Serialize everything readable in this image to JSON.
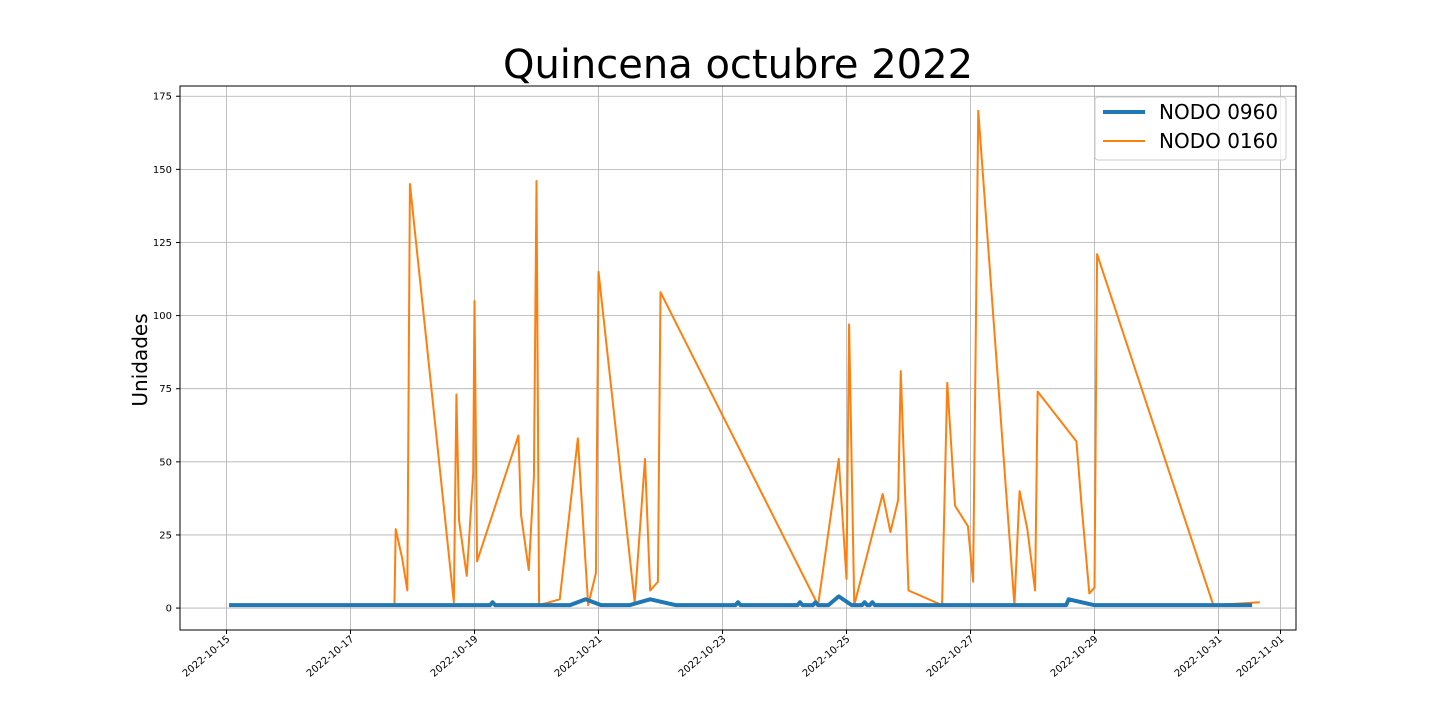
{
  "chart_data": {
    "type": "line",
    "title": "Quincena octubre 2022",
    "xlabel": "",
    "ylabel": "Unidades",
    "xlim": [
      "2022-10-14T06:00",
      "2022-11-01T06:00"
    ],
    "ylim": [
      -7.5,
      178.5
    ],
    "x_ticks": [
      "2022-10-15",
      "2022-10-17",
      "2022-10-19",
      "2022-10-21",
      "2022-10-23",
      "2022-10-25",
      "2022-10-27",
      "2022-10-29",
      "2022-10-31",
      "2022-11-01"
    ],
    "y_ticks": [
      0,
      25,
      50,
      75,
      100,
      125,
      150,
      175
    ],
    "grid": true,
    "legend": "top-right",
    "series": [
      {
        "name": "NODO 0960",
        "color": "#1f77b4",
        "line_width": "thick",
        "points": [
          [
            "2022-10-15T01:00",
            1
          ],
          [
            "2022-10-19T06:00",
            1
          ],
          [
            "2022-10-19T07:00",
            2
          ],
          [
            "2022-10-19T08:00",
            1
          ],
          [
            "2022-10-20T13:00",
            1
          ],
          [
            "2022-10-20T19:00",
            3
          ],
          [
            "2022-10-21T01:00",
            1
          ],
          [
            "2022-10-21T12:00",
            1
          ],
          [
            "2022-10-21T20:00",
            3
          ],
          [
            "2022-10-22T06:00",
            1
          ],
          [
            "2022-10-23T05:00",
            1
          ],
          [
            "2022-10-23T06:00",
            2
          ],
          [
            "2022-10-23T07:00",
            1
          ],
          [
            "2022-10-24T05:00",
            1
          ],
          [
            "2022-10-24T06:00",
            2
          ],
          [
            "2022-10-24T07:00",
            1
          ],
          [
            "2022-10-24T11:00",
            1
          ],
          [
            "2022-10-24T12:00",
            2
          ],
          [
            "2022-10-24T13:00",
            1
          ],
          [
            "2022-10-24T17:00",
            1
          ],
          [
            "2022-10-24T21:00",
            4
          ],
          [
            "2022-10-25T02:00",
            1
          ],
          [
            "2022-10-25T06:00",
            1
          ],
          [
            "2022-10-25T07:00",
            2
          ],
          [
            "2022-10-25T08:00",
            1
          ],
          [
            "2022-10-25T09:00",
            1
          ],
          [
            "2022-10-25T10:00",
            2
          ],
          [
            "2022-10-25T11:00",
            1
          ],
          [
            "2022-10-28T13:00",
            1
          ],
          [
            "2022-10-28T14:00",
            3
          ],
          [
            "2022-10-29T00:00",
            1
          ],
          [
            "2022-10-31T13:00",
            1
          ]
        ]
      },
      {
        "name": "NODO 0160",
        "color": "#ff7f0e",
        "line_width": "thin",
        "points": [
          [
            "2022-10-16T15:00",
            1
          ],
          [
            "2022-10-17T17:00",
            1
          ],
          [
            "2022-10-17T17:30",
            27
          ],
          [
            "2022-10-17T20:00",
            17
          ],
          [
            "2022-10-17T22:00",
            6
          ],
          [
            "2022-10-17T23:00",
            145
          ],
          [
            "2022-10-18T16:00",
            2
          ],
          [
            "2022-10-18T17:00",
            73
          ],
          [
            "2022-10-18T18:00",
            30
          ],
          [
            "2022-10-18T21:00",
            11
          ],
          [
            "2022-10-18T23:30",
            46
          ],
          [
            "2022-10-19T00:00",
            105
          ],
          [
            "2022-10-19T01:00",
            16
          ],
          [
            "2022-10-19T17:00",
            59
          ],
          [
            "2022-10-19T18:00",
            32
          ],
          [
            "2022-10-19T21:00",
            13
          ],
          [
            "2022-10-19T23:00",
            45
          ],
          [
            "2022-10-20T00:00",
            146
          ],
          [
            "2022-10-20T01:00",
            1
          ],
          [
            "2022-10-20T09:00",
            3
          ],
          [
            "2022-10-20T16:00",
            58
          ],
          [
            "2022-10-20T20:00",
            1
          ],
          [
            "2022-10-20T23:00",
            12
          ],
          [
            "2022-10-21T00:00",
            115
          ],
          [
            "2022-10-21T14:00",
            2
          ],
          [
            "2022-10-21T18:00",
            51
          ],
          [
            "2022-10-21T20:00",
            6
          ],
          [
            "2022-10-21T23:00",
            9
          ],
          [
            "2022-10-22T00:00",
            108
          ],
          [
            "2022-10-24T13:00",
            1
          ],
          [
            "2022-10-24T21:00",
            51
          ],
          [
            "2022-10-25T00:00",
            10
          ],
          [
            "2022-10-25T01:00",
            97
          ],
          [
            "2022-10-25T03:00",
            1
          ],
          [
            "2022-10-25T14:00",
            39
          ],
          [
            "2022-10-25T17:00",
            26
          ],
          [
            "2022-10-25T20:00",
            37
          ],
          [
            "2022-10-25T21:00",
            81
          ],
          [
            "2022-10-26T00:00",
            6
          ],
          [
            "2022-10-26T13:00",
            1
          ],
          [
            "2022-10-26T15:00",
            77
          ],
          [
            "2022-10-26T18:00",
            35
          ],
          [
            "2022-10-26T23:00",
            28
          ],
          [
            "2022-10-27T01:00",
            9
          ],
          [
            "2022-10-27T03:00",
            170
          ],
          [
            "2022-10-27T17:00",
            1
          ],
          [
            "2022-10-27T19:00",
            40
          ],
          [
            "2022-10-27T22:00",
            27
          ],
          [
            "2022-10-28T01:00",
            6
          ],
          [
            "2022-10-28T02:00",
            74
          ],
          [
            "2022-10-28T17:00",
            57
          ],
          [
            "2022-10-28T19:00",
            35
          ],
          [
            "2022-10-28T22:00",
            5
          ],
          [
            "2022-10-29T00:00",
            7
          ],
          [
            "2022-10-29T01:00",
            121
          ],
          [
            "2022-10-30T22:00",
            1
          ],
          [
            "2022-10-31T16:00",
            2
          ]
        ]
      }
    ]
  }
}
